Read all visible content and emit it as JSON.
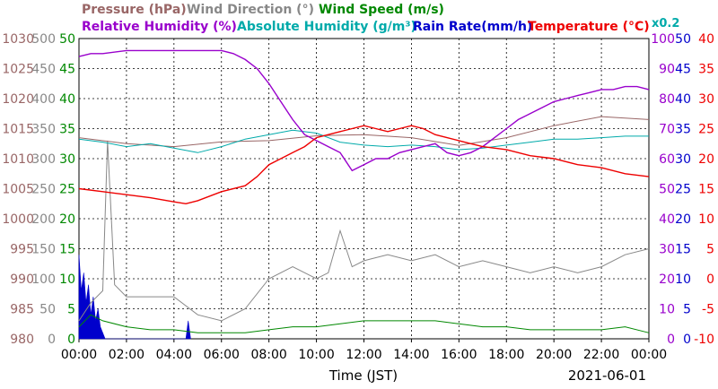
{
  "chart_data": {
    "type": "line",
    "xlabel": "Time (JST)",
    "date": "2021-06-01",
    "x_ticks": [
      "00:00",
      "02:00",
      "04:00",
      "06:00",
      "08:00",
      "10:00",
      "12:00",
      "14:00",
      "16:00",
      "18:00",
      "20:00",
      "22:00",
      "00:00"
    ],
    "legend": [
      {
        "key": "pressure",
        "label": "Pressure (hPa)",
        "color": "#996666"
      },
      {
        "key": "wind_dir",
        "label": "Wind Direction (°)",
        "color": "#888888"
      },
      {
        "key": "wind_speed",
        "label": "Wind Speed (m/s)",
        "color": "#008800"
      },
      {
        "key": "rh",
        "label": "Relative Humidity (%)",
        "color": "#9900cc"
      },
      {
        "key": "ah",
        "label": "Absolute Humidity (g/m³)",
        "color": "#00aaaa"
      },
      {
        "key": "rain",
        "label": "Rain Rate(mm/h)",
        "color": "#0000cc"
      },
      {
        "key": "temp",
        "label": "Temperature (°C)",
        "color": "#ee0000"
      }
    ],
    "ah_scale_note": "x0.2",
    "axes": {
      "pressure": {
        "color": "#996666",
        "ticks": [
          980,
          985,
          990,
          995,
          1000,
          1005,
          1010,
          1015,
          1020,
          1025,
          1030
        ]
      },
      "wind_dir": {
        "color": "#888888",
        "ticks": [
          0,
          50,
          100,
          150,
          200,
          250,
          300,
          350,
          400,
          450,
          500
        ]
      },
      "wind_speed": {
        "color": "#008800",
        "ticks": [
          0,
          5,
          10,
          15,
          20,
          25,
          30,
          35,
          40,
          45,
          50
        ]
      },
      "rh": {
        "color": "#9900cc",
        "ticks": [
          0,
          10,
          20,
          30,
          40,
          50,
          60,
          70,
          80,
          90,
          100
        ]
      },
      "rain": {
        "color": "#0000cc",
        "ticks": [
          0,
          5,
          10,
          15,
          20,
          25,
          30,
          35,
          40,
          45,
          50
        ]
      },
      "temp": {
        "color": "#ee0000",
        "ticks": [
          -10,
          -5,
          0,
          5,
          10,
          15,
          20,
          25,
          30,
          35,
          40
        ]
      }
    },
    "series": {
      "pressure": {
        "x": [
          0,
          2,
          4,
          6,
          8,
          10,
          12,
          14,
          16,
          18,
          20,
          22,
          24
        ],
        "y": [
          1013.5,
          1012.5,
          1012.0,
          1012.8,
          1013.0,
          1013.8,
          1014.0,
          1013.5,
          1012.2,
          1013.5,
          1015.5,
          1017.0,
          1016.5
        ]
      },
      "rh": {
        "x": [
          0,
          0.5,
          1,
          2,
          3,
          4,
          5,
          6,
          6.5,
          7,
          7.5,
          8,
          8.5,
          9,
          9.5,
          10,
          10.5,
          11,
          11.5,
          12,
          12.5,
          13,
          13.5,
          14,
          14.5,
          15,
          15.5,
          16,
          16.5,
          17,
          17.5,
          18,
          18.5,
          19,
          19.5,
          20,
          20.5,
          21,
          21.5,
          22,
          22.5,
          23,
          23.5,
          24
        ],
        "y": [
          94,
          95,
          95,
          96,
          96,
          96,
          96,
          96,
          95,
          93,
          90,
          85,
          79,
          73,
          68,
          66,
          64,
          62,
          56,
          58,
          60,
          60,
          62,
          63,
          64,
          65,
          62,
          61,
          62,
          64,
          67,
          70,
          73,
          75,
          77,
          79,
          80,
          81,
          82,
          83,
          83,
          84,
          84,
          83
        ]
      },
      "ah": {
        "x": [
          0,
          1,
          2,
          3,
          4,
          5,
          6,
          7,
          8,
          9,
          10,
          11,
          12,
          13,
          14,
          15,
          16,
          17,
          18,
          19,
          20,
          21,
          22,
          23,
          24
        ],
        "y": [
          13.3,
          13.1,
          12.8,
          13.0,
          12.7,
          12.4,
          12.8,
          13.3,
          13.6,
          13.9,
          13.7,
          13.1,
          12.9,
          12.8,
          12.9,
          12.8,
          12.6,
          12.7,
          12.9,
          13.1,
          13.3,
          13.3,
          13.4,
          13.5,
          13.5
        ]
      },
      "temp": {
        "x": [
          0,
          1,
          2,
          3,
          4,
          4.5,
          5,
          6,
          7,
          7.5,
          8,
          8.5,
          9,
          9.5,
          10,
          10.5,
          11,
          11.5,
          12,
          12.5,
          13,
          13.5,
          14,
          14.5,
          15,
          15.5,
          16,
          16.5,
          17,
          18,
          19,
          20,
          21,
          22,
          23,
          24
        ],
        "y": [
          15,
          14.5,
          14,
          13.5,
          12.8,
          12.5,
          13,
          14.5,
          15.5,
          17,
          19,
          20,
          21,
          22,
          23.5,
          24,
          24.5,
          25,
          25.5,
          25,
          24.5,
          25,
          25.5,
          25,
          24,
          23.5,
          23,
          22.5,
          22,
          21.5,
          20.5,
          20,
          19,
          18.5,
          17.5,
          17
        ]
      },
      "wind_speed": {
        "x": [
          0,
          0.5,
          1,
          2,
          3,
          4,
          5,
          6,
          7,
          8,
          9,
          10,
          11,
          12,
          13,
          14,
          15,
          16,
          17,
          18,
          19,
          20,
          21,
          22,
          23,
          24
        ],
        "y": [
          2,
          4,
          3,
          2,
          1.5,
          1.5,
          1,
          1,
          1,
          1.5,
          2,
          2,
          2.5,
          3,
          3,
          3,
          3,
          2.5,
          2,
          2,
          1.5,
          1.5,
          1.5,
          1.5,
          2,
          1
        ]
      },
      "wind_dir": {
        "x": [
          0,
          0.5,
          1,
          1.2,
          1.5,
          2,
          3,
          4,
          5,
          6,
          7,
          8,
          9,
          10,
          10.5,
          11,
          11.5,
          12,
          13,
          14,
          15,
          16,
          17,
          18,
          19,
          20,
          21,
          22,
          23,
          24
        ],
        "y": [
          30,
          60,
          80,
          330,
          90,
          70,
          70,
          70,
          40,
          30,
          50,
          100,
          120,
          100,
          110,
          180,
          120,
          130,
          140,
          130,
          140,
          120,
          130,
          120,
          110,
          120,
          110,
          120,
          140,
          150
        ]
      },
      "rain": {
        "x": [
          0,
          0.1,
          0.2,
          0.3,
          0.4,
          0.5,
          0.6,
          0.7,
          0.8,
          0.9,
          1.0,
          1.1,
          4.5,
          4.6,
          4.7
        ],
        "y": [
          14,
          8,
          11,
          6,
          9,
          4,
          7,
          3,
          5,
          2,
          1,
          0,
          0,
          3,
          0
        ]
      }
    }
  }
}
